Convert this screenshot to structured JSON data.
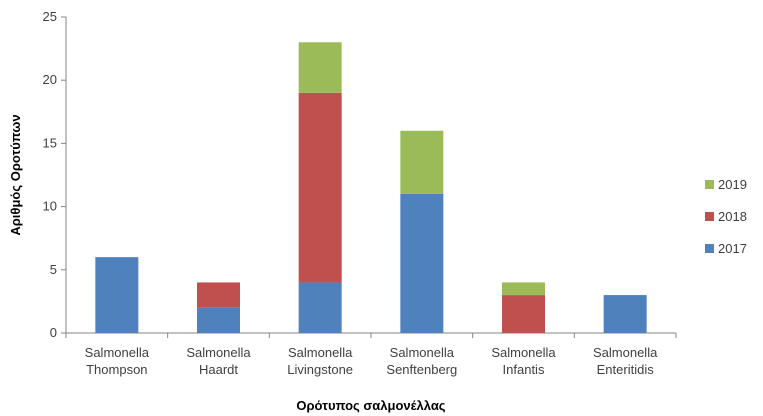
{
  "chart_data": {
    "type": "bar",
    "stacked": true,
    "categories": [
      [
        "Salmonella",
        "Thompson"
      ],
      [
        "Salmonella",
        "Haardt"
      ],
      [
        "Salmonella",
        "Livingstone"
      ],
      [
        "Salmonella",
        "Senftenberg"
      ],
      [
        "Salmonella",
        "Infantis"
      ],
      [
        "Salmonella",
        "Enteritidis"
      ]
    ],
    "series": [
      {
        "name": "2017",
        "color": "#4F81BD",
        "values": [
          6,
          2,
          4,
          11,
          0,
          3
        ]
      },
      {
        "name": "2018",
        "color": "#C0504D",
        "values": [
          0,
          2,
          15,
          0,
          3,
          0
        ]
      },
      {
        "name": "2019",
        "color": "#9BBB59",
        "values": [
          0,
          0,
          4,
          5,
          1,
          0
        ]
      }
    ],
    "title": "",
    "xlabel": "Ορότυπος σαλμονέλλας",
    "ylabel": "Αριθμός Οροτύπων",
    "ylim": [
      0,
      25
    ],
    "yticks": [
      0,
      5,
      10,
      15,
      20,
      25
    ],
    "grid": false,
    "legend": "right",
    "legend_order": [
      "2019",
      "2018",
      "2017"
    ]
  }
}
